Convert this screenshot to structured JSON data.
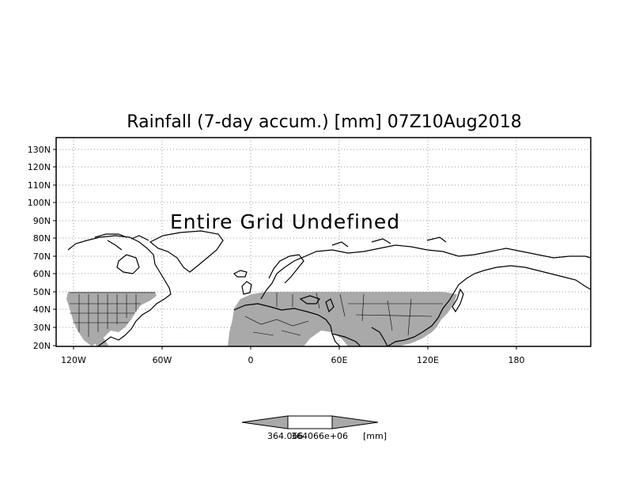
{
  "title": "Rainfall (7-day accum.) [mm] 07Z10Aug2018",
  "message": "Entire Grid Undefined",
  "colors": {
    "shade": "#a9a9a9",
    "background": "#ffffff",
    "grid": "#999999"
  },
  "axes": {
    "lat_labels": [
      "130N",
      "120N",
      "110N",
      "100N",
      "90N",
      "80N",
      "70N",
      "60N",
      "50N",
      "40N",
      "30N",
      "20N"
    ],
    "lon_labels": [
      "120W",
      "60W",
      "0",
      "60E",
      "120E",
      "180"
    ]
  },
  "colorbar": {
    "label_left": "364.066",
    "label_mid": "364066e+06",
    "unit": "[mm]"
  }
}
